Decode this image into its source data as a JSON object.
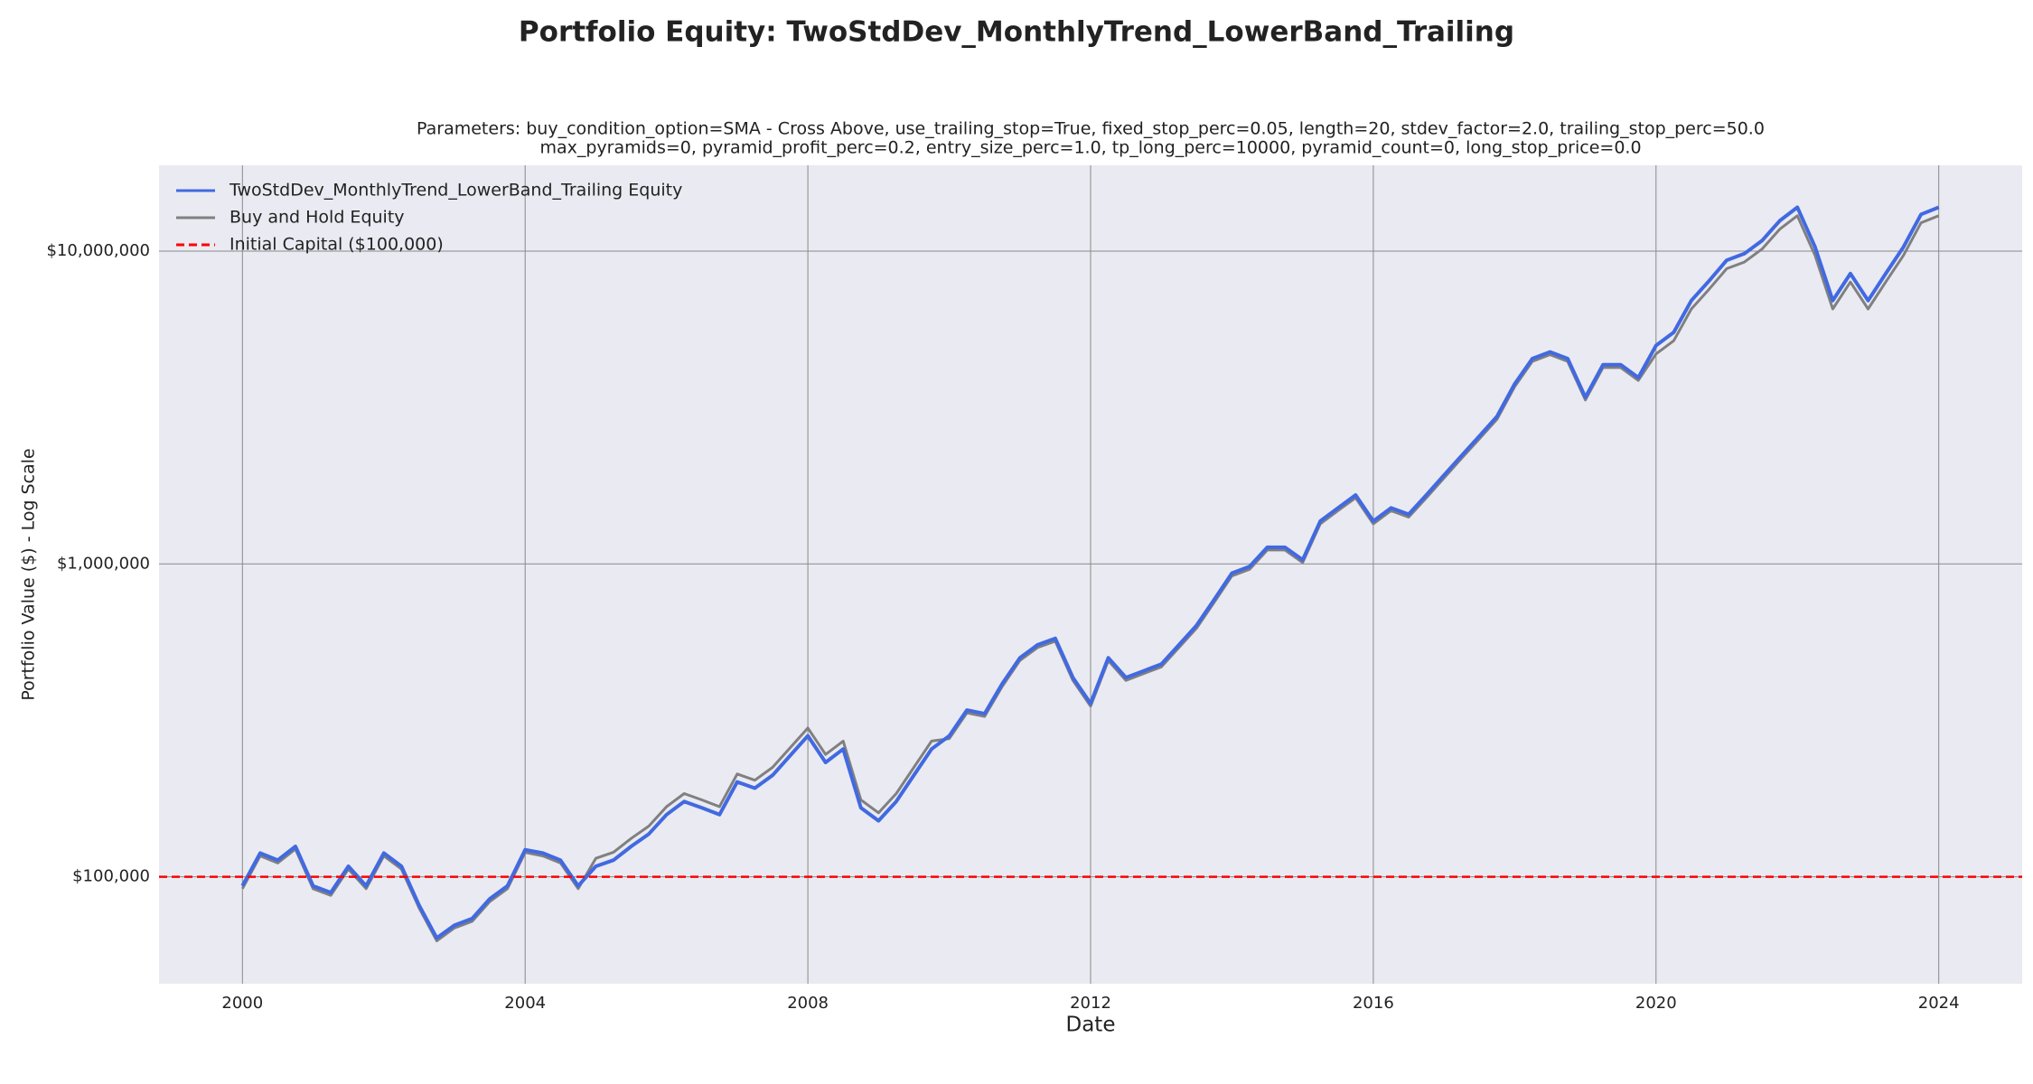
{
  "chart_data": {
    "type": "line",
    "title": "Portfolio Equity: TwoStdDev_MonthlyTrend_LowerBand_Trailing",
    "subtitle": [
      "Parameters: buy_condition_option=SMA - Cross Above, use_trailing_stop=True, fixed_stop_perc=0.05, length=20, stdev_factor=2.0, trailing_stop_perc=50.0",
      "max_pyramids=0, pyramid_profit_perc=0.2, entry_size_perc=1.0, tp_long_perc=10000, pyramid_count=0, long_stop_price=0.0"
    ],
    "xlabel": "Date",
    "ylabel": "Portfolio Value ($) - Log Scale",
    "x": [
      2000,
      2000.25,
      2000.5,
      2000.75,
      2001,
      2001.25,
      2001.5,
      2001.75,
      2002,
      2002.25,
      2002.5,
      2002.75,
      2003,
      2003.25,
      2003.5,
      2003.75,
      2004,
      2004.25,
      2004.5,
      2004.75,
      2005,
      2005.25,
      2005.5,
      2005.75,
      2006,
      2006.25,
      2006.5,
      2006.75,
      2007,
      2007.25,
      2007.5,
      2007.75,
      2008,
      2008.25,
      2008.5,
      2008.75,
      2009,
      2009.25,
      2009.5,
      2009.75,
      2010,
      2010.25,
      2010.5,
      2010.75,
      2011,
      2011.25,
      2011.5,
      2011.75,
      2012,
      2012.25,
      2012.5,
      2012.75,
      2013,
      2013.25,
      2013.5,
      2013.75,
      2014,
      2014.25,
      2014.5,
      2014.75,
      2015,
      2015.25,
      2015.5,
      2015.75,
      2016,
      2016.25,
      2016.5,
      2016.75,
      2017,
      2017.25,
      2017.5,
      2017.75,
      2018,
      2018.25,
      2018.5,
      2018.75,
      2019,
      2019.25,
      2019.5,
      2019.75,
      2020,
      2020.25,
      2020.5,
      2020.75,
      2021,
      2021.25,
      2021.5,
      2021.75,
      2022,
      2022.25,
      2022.5,
      2022.75,
      2023,
      2023.25,
      2023.5,
      2023.75,
      2024
    ],
    "series": [
      {
        "name": "TwoStdDev_MonthlyTrend_LowerBand_Trailing Equity",
        "color": "#4169e1",
        "values": [
          93500,
          119000,
          113000,
          125000,
          93500,
          89000,
          108000,
          93500,
          119000,
          108000,
          81000,
          63700,
          70000,
          73500,
          85000,
          93500,
          122000,
          119000,
          113000,
          93500,
          108000,
          113000,
          125000,
          137000,
          158000,
          174000,
          166000,
          158000,
          201000,
          192000,
          211000,
          244000,
          282000,
          232000,
          256000,
          166000,
          151000,
          174000,
          211000,
          256000,
          282000,
          341000,
          332000,
          414000,
          501000,
          551000,
          578000,
          433000,
          358000,
          501000,
          433000,
          455000,
          478000,
          551000,
          636000,
          770000,
          934000,
          981000,
          1130000,
          1130000,
          1030000,
          1370000,
          1510000,
          1660000,
          1370000,
          1510000,
          1440000,
          1660000,
          1920000,
          2220000,
          2560000,
          2960000,
          3760000,
          4530000,
          4760000,
          4530000,
          3410000,
          4330000,
          4330000,
          3940000,
          4990000,
          5500000,
          6950000,
          8030000,
          9350000,
          9810000,
          10800000,
          12500000,
          13800000,
          10300000,
          6950000,
          8470000,
          6950000,
          8470000,
          10300000,
          13100000,
          13800000
        ]
      },
      {
        "name": "Buy and Hold Equity",
        "color": "#808080",
        "values": [
          91600,
          116600,
          110700,
          122500,
          91600,
          87200,
          105800,
          91600,
          116600,
          105800,
          79400,
          62400,
          68600,
          72000,
          83300,
          91600,
          119600,
          116600,
          110700,
          91600,
          114500,
          119800,
          132500,
          145200,
          167500,
          184400,
          176000,
          167500,
          213100,
          203500,
          223700,
          258600,
          298900,
          245900,
          271400,
          176000,
          160100,
          184400,
          223700,
          271400,
          276400,
          334200,
          325400,
          405700,
          491000,
          540000,
          566400,
          424300,
          350800,
          491000,
          424300,
          445900,
          468400,
          540000,
          623300,
          754600,
          915300,
          961400,
          1107400,
          1107400,
          1009400,
          1342600,
          1479800,
          1626800,
          1342600,
          1479800,
          1411200,
          1626800,
          1881600,
          2175600,
          2508800,
          2900800,
          3684800,
          4439400,
          4664800,
          4439400,
          3341800,
          4243400,
          4243400,
          3861200,
          4690600,
          5170000,
          6533000,
          7548200,
          8789000,
          9221400,
          10152000,
          11750000,
          12972000,
          9682000,
          6533000,
          7961800,
          6533000,
          7961800,
          9682000,
          12314000,
          12972000
        ]
      }
    ],
    "reference_line": {
      "name": "Initial Capital ($100,000)",
      "value": 100000,
      "color": "#ff0000"
    },
    "xlim": [
      1998.82,
      2025.18
    ],
    "xticks": [
      2000,
      2004,
      2008,
      2012,
      2016,
      2020,
      2024
    ],
    "ylim": [
      45500,
      18800000
    ],
    "yticks": [
      {
        "value": 100000,
        "label": "$100,000"
      },
      {
        "value": 1000000,
        "label": "$1,000,000"
      },
      {
        "value": 10000000,
        "label": "$10,000,000"
      }
    ],
    "log_y": true,
    "grid": true,
    "legend": "upper left"
  }
}
